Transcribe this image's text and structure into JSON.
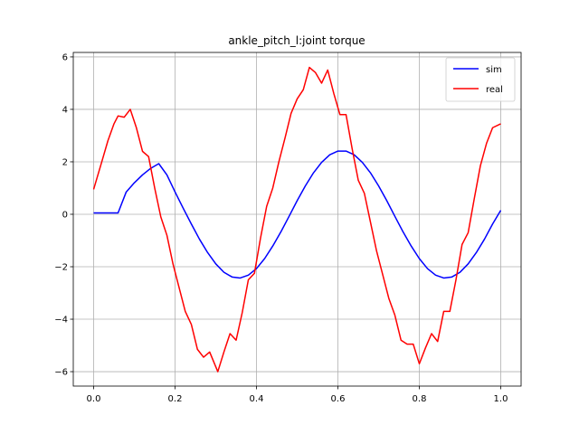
{
  "chart_data": {
    "type": "line",
    "title": "ankle_pitch_l:joint torque",
    "series": [
      {
        "name": "sim",
        "color": "#0000ff",
        "x": [
          0,
          0.02,
          0.04,
          0.06,
          0.08,
          0.1,
          0.12,
          0.14,
          0.16,
          0.18,
          0.2,
          0.22,
          0.24,
          0.26,
          0.28,
          0.3,
          0.32,
          0.34,
          0.36,
          0.38,
          0.4,
          0.42,
          0.44,
          0.46,
          0.48,
          0.5,
          0.52,
          0.54,
          0.56,
          0.58,
          0.6,
          0.62,
          0.64,
          0.66,
          0.68,
          0.7,
          0.72,
          0.74,
          0.76,
          0.78,
          0.8,
          0.82,
          0.84,
          0.86,
          0.88,
          0.9,
          0.92,
          0.94,
          0.96,
          0.98,
          1.0
        ],
        "values": [
          0.05,
          0.05,
          0.05,
          0.05,
          0.85,
          1.2,
          1.5,
          1.75,
          1.93,
          1.5,
          0.85,
          0.23,
          -0.37,
          -0.95,
          -1.46,
          -1.89,
          -2.21,
          -2.39,
          -2.43,
          -2.32,
          -2.07,
          -1.69,
          -1.21,
          -0.67,
          -0.08,
          0.52,
          1.08,
          1.58,
          1.98,
          2.27,
          2.41,
          2.41,
          2.27,
          1.98,
          1.58,
          1.08,
          0.52,
          -0.08,
          -0.67,
          -1.21,
          -1.69,
          -2.07,
          -2.32,
          -2.43,
          -2.39,
          -2.21,
          -1.89,
          -1.46,
          -0.95,
          -0.37,
          0.15
        ]
      },
      {
        "name": "real",
        "color": "#ff0000",
        "x": [
          0,
          0.02,
          0.035,
          0.05,
          0.06,
          0.075,
          0.09,
          0.105,
          0.12,
          0.135,
          0.15,
          0.165,
          0.18,
          0.195,
          0.21,
          0.225,
          0.24,
          0.255,
          0.27,
          0.285,
          0.305,
          0.32,
          0.335,
          0.35,
          0.365,
          0.38,
          0.395,
          0.41,
          0.425,
          0.44,
          0.455,
          0.47,
          0.485,
          0.5,
          0.515,
          0.53,
          0.545,
          0.56,
          0.575,
          0.59,
          0.605,
          0.62,
          0.635,
          0.65,
          0.665,
          0.68,
          0.695,
          0.71,
          0.725,
          0.74,
          0.755,
          0.77,
          0.785,
          0.8,
          0.815,
          0.83,
          0.845,
          0.86,
          0.875,
          0.89,
          0.905,
          0.92,
          0.935,
          0.95,
          0.965,
          0.98,
          1.0
        ],
        "values": [
          0.95,
          2.0,
          2.8,
          3.45,
          3.75,
          3.7,
          4.0,
          3.3,
          2.4,
          2.2,
          1.0,
          -0.1,
          -0.8,
          -1.9,
          -2.8,
          -3.7,
          -4.2,
          -5.15,
          -5.45,
          -5.25,
          -6.0,
          -5.25,
          -4.55,
          -4.8,
          -3.75,
          -2.5,
          -2.25,
          -0.9,
          0.3,
          1.0,
          2.0,
          2.9,
          3.85,
          4.4,
          4.75,
          5.6,
          5.4,
          5.0,
          5.5,
          4.6,
          3.8,
          3.8,
          2.5,
          1.3,
          0.8,
          -0.3,
          -1.4,
          -2.3,
          -3.2,
          -3.85,
          -4.8,
          -4.95,
          -4.95,
          -5.7,
          -5.1,
          -4.55,
          -4.85,
          -3.7,
          -3.7,
          -2.5,
          -1.15,
          -0.7,
          0.6,
          1.85,
          2.7,
          3.3,
          3.45
        ]
      }
    ],
    "xlim": [
      -0.05,
      1.05
    ],
    "xticks": [
      {
        "value": 0,
        "label": "0.0"
      },
      0.2,
      0.4,
      0.6,
      0.8,
      {
        "value": 1,
        "label": "1.0"
      }
    ],
    "ylim": [
      -6.55,
      6.17
    ],
    "yticks": [
      {
        "value": -6,
        "label": "−6"
      },
      {
        "value": -4,
        "label": "−4"
      },
      {
        "value": -2,
        "label": "−2"
      },
      0,
      2,
      4,
      6
    ],
    "grid": true,
    "legend": "upper right"
  }
}
